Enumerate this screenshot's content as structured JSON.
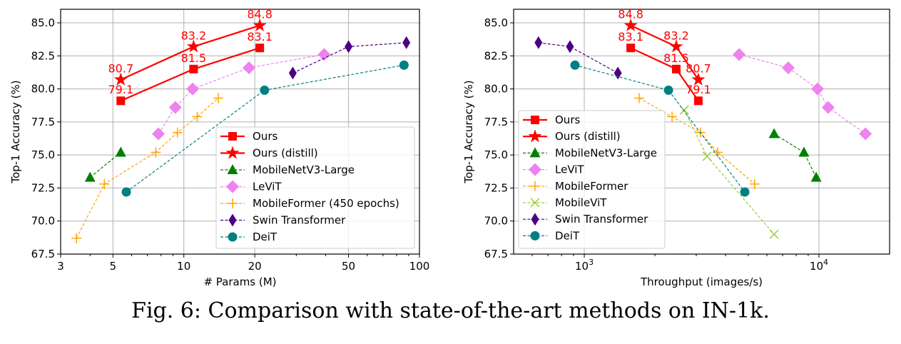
{
  "caption": "Fig. 6: Comparison with state-of-the-art methods on IN-1k.",
  "chart_data": [
    {
      "type": "line",
      "xscale": "log",
      "xlabel": "# Params (M)",
      "ylabel": "Top-1 Accuracy (%)",
      "xlim": [
        3,
        100
      ],
      "ylim": [
        67.5,
        86
      ],
      "xticks": [
        3,
        5,
        10,
        20,
        50,
        100
      ],
      "xtick_labels": [
        "3",
        "5",
        "10",
        "20",
        "50",
        "100"
      ],
      "yticks": [
        67.5,
        70.0,
        72.5,
        75.0,
        77.5,
        80.0,
        82.5,
        85.0
      ],
      "ytick_labels": [
        "67.5",
        "70.0",
        "72.5",
        "75.0",
        "77.5",
        "80.0",
        "82.5",
        "85.0"
      ],
      "grid": true,
      "legend_position": "lower-right",
      "series": [
        {
          "name": "Ours",
          "color": "#ff0000",
          "marker": "square",
          "style": "solid",
          "x": [
            5.4,
            11.0,
            21.0
          ],
          "y": [
            79.1,
            81.5,
            83.1
          ],
          "labels": [
            "79.1",
            "81.5",
            "83.1"
          ]
        },
        {
          "name": "Ours (distill)",
          "color": "#ff0000",
          "marker": "star",
          "style": "solid",
          "x": [
            5.4,
            11.0,
            21.0
          ],
          "y": [
            80.7,
            83.2,
            84.8
          ],
          "labels": [
            "80.7",
            "83.2",
            "84.8"
          ]
        },
        {
          "name": "MobileNetV3-Large",
          "color": "#008000",
          "marker": "triangle",
          "style": "dashed",
          "x": [
            4.0,
            5.4
          ],
          "y": [
            73.3,
            75.2
          ]
        },
        {
          "name": "LeViT",
          "color": "#ee82ee",
          "marker": "diamond",
          "style": "dashed",
          "x": [
            7.8,
            9.2,
            10.9,
            18.9,
            39.4
          ],
          "y": [
            76.6,
            78.6,
            80.0,
            81.6,
            82.6
          ]
        },
        {
          "name": "MobileFormer (450 epochs)",
          "color": "#ffa500",
          "marker": "plus",
          "style": "dashed",
          "x": [
            3.5,
            4.6,
            7.6,
            9.4,
            11.4,
            14.0
          ],
          "y": [
            68.7,
            72.8,
            75.2,
            76.7,
            77.9,
            79.3
          ]
        },
        {
          "name": "Swin Transformer",
          "color": "#4b0082",
          "marker": "thin_diamond",
          "style": "dashed",
          "x": [
            29,
            50,
            88
          ],
          "y": [
            81.2,
            83.2,
            83.5
          ]
        },
        {
          "name": "DeiT",
          "color": "#008080",
          "marker": "circle",
          "style": "dashed",
          "x": [
            5.7,
            22,
            86
          ],
          "y": [
            72.2,
            79.9,
            81.8
          ]
        }
      ]
    },
    {
      "type": "line",
      "xscale": "log",
      "xlabel": "Throughput (images/s)",
      "ylabel": "Top-1 Accuracy (%)",
      "xlim": [
        500,
        20000
      ],
      "ylim": [
        67.5,
        86
      ],
      "xticks": [
        1000,
        10000
      ],
      "xtick_labels": [
        "10^3",
        "10^4"
      ],
      "yticks": [
        67.5,
        70.0,
        72.5,
        75.0,
        77.5,
        80.0,
        82.5,
        85.0
      ],
      "ytick_labels": [
        "67.5",
        "70.0",
        "72.5",
        "75.0",
        "77.5",
        "80.0",
        "82.5",
        "85.0"
      ],
      "grid": true,
      "legend_position": "lower-left",
      "series": [
        {
          "name": "Ours",
          "color": "#ff0000",
          "marker": "square",
          "style": "solid",
          "x": [
            1577,
            2466,
            3062
          ],
          "y": [
            83.1,
            81.5,
            79.1
          ],
          "labels": [
            "83.1",
            "81.5",
            "79.1"
          ]
        },
        {
          "name": "Ours (distill)",
          "color": "#ff0000",
          "marker": "star",
          "style": "solid",
          "x": [
            1577,
            2466,
            3062
          ],
          "y": [
            84.8,
            83.2,
            80.7
          ],
          "labels": [
            "84.8",
            "83.2",
            "80.7"
          ]
        },
        {
          "name": "MobileNetV3-Large",
          "color": "#008000",
          "marker": "triangle",
          "style": "dashed",
          "x": [
            6440,
            8630,
            9730
          ],
          "y": [
            76.6,
            75.2,
            73.3
          ]
        },
        {
          "name": "LeViT",
          "color": "#ee82ee",
          "marker": "diamond",
          "style": "dashed",
          "x": [
            4570,
            7400,
            9860,
            10950,
            15780
          ],
          "y": [
            82.6,
            81.6,
            80.0,
            78.6,
            76.6
          ]
        },
        {
          "name": "MobileFormer",
          "color": "#ffa500",
          "marker": "plus",
          "style": "dashed",
          "x": [
            1714,
            2366,
            3125,
            3700,
            5320
          ],
          "y": [
            79.3,
            77.9,
            76.7,
            75.2,
            72.8
          ]
        },
        {
          "name": "MobileViT",
          "color": "#9acd32",
          "marker": "x",
          "style": "dashed",
          "x": [
            2668,
            3336,
            6440
          ],
          "y": [
            78.4,
            74.9,
            69.0
          ]
        },
        {
          "name": "Swin Transformer",
          "color": "#4b0082",
          "marker": "thin_diamond",
          "style": "dashed",
          "x": [
            638,
            869,
            1390
          ],
          "y": [
            83.5,
            83.2,
            81.2
          ]
        },
        {
          "name": "DeiT",
          "color": "#008080",
          "marker": "circle",
          "style": "dashed",
          "x": [
            913,
            2285,
            4830
          ],
          "y": [
            81.8,
            79.9,
            72.2
          ]
        }
      ]
    }
  ]
}
